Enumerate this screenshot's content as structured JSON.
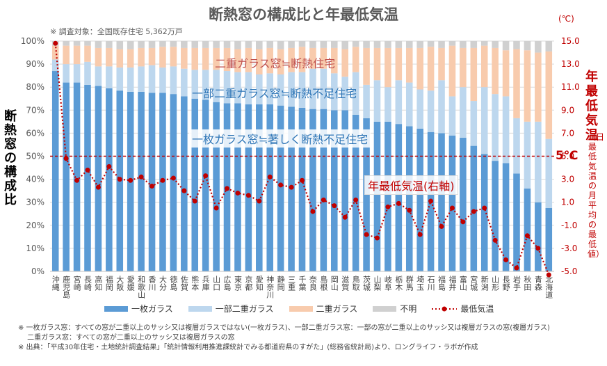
{
  "title": "断熱窓の構成比と年最低気温",
  "subnote": "※ 調査対象：全国既存住宅 5,362万戸",
  "right_unit": "(℃)",
  "left_axis_title": "断熱窓の構成比",
  "right_axis_title": "年最低気温",
  "right_axis_subtitle": "（日最低気温の月平均の最低値）",
  "threshold_label": "5℃",
  "annotations": {
    "double": "二重ガラス窓≒断熱住宅",
    "partial": "一部二重ガラス窓≒断熱不足住宅",
    "single": "一枚ガラス窓≒著しく断熱不足住宅",
    "temp": "年最低気温(右軸)"
  },
  "footnotes": [
    "※ 一枚ガラス窓：すべての窓が二重以上のサッシ又は複層ガラスではない(一枚ガラス)、一部二重ガラス窓：一部の窓が二重以上のサッシ又は複層ガラスの窓(複層ガラス)",
    "　 二重ガラス窓：すべての窓が二重以上のサッシ又は複層ガラスの窓",
    "※ 出典：「平成30年住宅・土地統計調査結果」「統計情報利用推進課統計でみる都道府県のすがた」(総務省統計局)より、ロングライフ・ラボが作成"
  ],
  "chart_data": {
    "type": "bar",
    "stacked": true,
    "categories": [
      "沖縄",
      "鹿児島",
      "宮崎",
      "長崎",
      "高知",
      "福岡",
      "大阪",
      "愛媛",
      "和歌山",
      "香川",
      "大分",
      "徳島",
      "佐賀",
      "熊本",
      "兵庫",
      "山口",
      "広島",
      "東京",
      "京都",
      "愛知",
      "神奈川",
      "静岡",
      "三重",
      "千葉",
      "奈良",
      "島根",
      "岡山",
      "滋賀",
      "鳥取",
      "茨城",
      "山梨",
      "岐阜",
      "栃木",
      "群馬",
      "埼玉",
      "石川",
      "福島",
      "福井",
      "富山",
      "宮城",
      "新潟",
      "山形",
      "長野",
      "岩手",
      "秋田",
      "青森",
      "北海道"
    ],
    "series": [
      {
        "name": "一枚ガラス",
        "color": "#5b9bd5",
        "values": [
          87,
          82,
          82,
          81,
          80.5,
          79.5,
          78.5,
          78,
          78,
          77.5,
          77.5,
          77,
          76,
          75,
          74.5,
          73.5,
          73,
          73,
          72.5,
          72.5,
          72.5,
          72,
          71.5,
          71,
          70.5,
          70.5,
          70,
          70,
          68,
          66.5,
          65,
          65,
          64,
          63,
          62,
          60.5,
          60,
          59,
          58,
          54.5,
          51,
          48,
          47,
          42.5,
          36,
          30,
          27.5
        ]
      },
      {
        "name": "一部二重ガラス",
        "color": "#bdd7ee",
        "values": [
          5,
          8,
          8,
          10,
          8.5,
          9.5,
          10,
          10.5,
          11,
          12,
          11,
          12,
          12,
          12.5,
          13,
          14,
          14,
          13.5,
          14,
          13,
          13.5,
          13.5,
          15,
          15.5,
          17.5,
          17.5,
          16,
          14.5,
          18.5,
          14.5,
          18,
          15,
          19,
          19,
          17,
          18,
          23,
          17,
          22,
          19.5,
          29,
          29,
          29,
          24,
          29,
          35,
          30
        ]
      },
      {
        "name": "二重ガラス",
        "color": "#f8cbad",
        "values": [
          6,
          8,
          8,
          7,
          8,
          8,
          8,
          8,
          8,
          7.5,
          9,
          8.5,
          9,
          9.5,
          9.5,
          9.5,
          10,
          10,
          10.5,
          11,
          11,
          11,
          10.5,
          11,
          9,
          9,
          11,
          12,
          11,
          16,
          14,
          17,
          14,
          15,
          18,
          19,
          14,
          22,
          17,
          23,
          18,
          20,
          20,
          30,
          31,
          30,
          38
        ]
      },
      {
        "name": "不明",
        "color": "#d0d0d0",
        "values": [
          2,
          2,
          2,
          2,
          3,
          3,
          3.5,
          3.5,
          3,
          3,
          2.5,
          2.5,
          3,
          3,
          3,
          3,
          3,
          3.5,
          3,
          3.5,
          3,
          3.5,
          3,
          2.5,
          3,
          3,
          3,
          3.5,
          2.5,
          3,
          3,
          3,
          3,
          3,
          3,
          2.5,
          3,
          2,
          3,
          3,
          2,
          3,
          4,
          3.5,
          4,
          5,
          4.5
        ]
      },
      {
        "name": "最低気温",
        "color": "#c00000",
        "axis": "right",
        "values": [
          14.8,
          4.8,
          2.9,
          3.8,
          2.3,
          4.1,
          3.0,
          2.9,
          3.2,
          2.4,
          2.9,
          3.1,
          2.0,
          1.1,
          3.3,
          0.5,
          2.2,
          1.8,
          1.6,
          1.1,
          3.2,
          2.5,
          2.3,
          2.9,
          0.2,
          1.2,
          0.7,
          -0.3,
          1.2,
          -1.8,
          -2.1,
          0.6,
          0.9,
          0.3,
          -1.8,
          1.1,
          -1.1,
          0.5,
          -0.7,
          0.2,
          0.5,
          -2.3,
          -4.0,
          -4.7,
          -1.9,
          -3.0,
          -5.3
        ]
      }
    ],
    "ylim_left": [
      0,
      100
    ],
    "yticks_left": [
      "0%",
      "10%",
      "20%",
      "30%",
      "40%",
      "50%",
      "60%",
      "70%",
      "80%",
      "90%",
      "100%"
    ],
    "ylim_right": [
      -5,
      15
    ],
    "yticks_right": [
      "-5.0",
      "-3.0",
      "-1.0",
      "1.0",
      "3.0",
      "5.0",
      "7.0",
      "9.0",
      "11.0",
      "13.0",
      "15.0"
    ],
    "threshold": 5,
    "grid": true
  }
}
